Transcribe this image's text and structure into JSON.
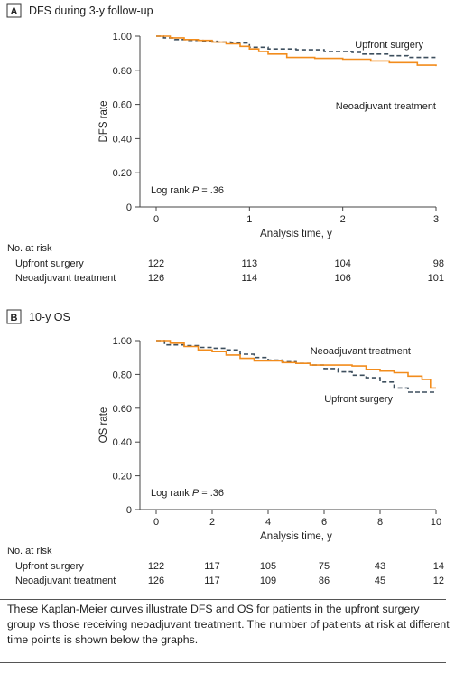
{
  "chart_data": [
    {
      "type": "line",
      "panel_letter": "A",
      "title": "DFS during 3-y follow-up",
      "xlabel": "Analysis time, y",
      "ylabel": "DFS rate",
      "xlim": [
        0,
        3
      ],
      "ylim": [
        0,
        1
      ],
      "x_ticks": [
        0,
        1,
        2,
        3
      ],
      "x_tick_labels": [
        "0",
        "1",
        "2",
        "3"
      ],
      "y_ticks": [
        0,
        0.2,
        0.4,
        0.6,
        0.8,
        1.0
      ],
      "y_tick_labels": [
        "0",
        "0.20",
        "0.40",
        "0.60",
        "0.80",
        "1.00"
      ],
      "annotation": {
        "prefix": "Log rank ",
        "p": "P",
        "suffix": " = .36"
      },
      "series": [
        {
          "name": "Upfront surgery",
          "color": "#3d4f5e",
          "style": "dashed",
          "x": [
            0,
            0.08,
            0.2,
            0.35,
            0.5,
            0.65,
            0.8,
            1.0,
            1.2,
            1.5,
            1.8,
            2.1,
            2.2,
            2.5,
            2.7,
            3.0
          ],
          "y": [
            1.0,
            0.99,
            0.98,
            0.975,
            0.97,
            0.965,
            0.96,
            0.935,
            0.925,
            0.92,
            0.91,
            0.905,
            0.895,
            0.885,
            0.875,
            0.87
          ]
        },
        {
          "name": "Neoadjuvant treatment",
          "color": "#f28c1c",
          "style": "solid",
          "x": [
            0,
            0.15,
            0.3,
            0.45,
            0.6,
            0.75,
            0.9,
            1.0,
            1.1,
            1.2,
            1.4,
            1.7,
            2.0,
            2.3,
            2.5,
            2.8,
            3.0
          ],
          "y": [
            1.0,
            0.99,
            0.98,
            0.975,
            0.965,
            0.955,
            0.94,
            0.925,
            0.91,
            0.895,
            0.875,
            0.87,
            0.865,
            0.855,
            0.845,
            0.83,
            0.825
          ]
        }
      ],
      "risk_table": {
        "header": "No. at risk",
        "rows": [
          {
            "label": "Upfront surgery",
            "values": [
              "122",
              "113",
              "104",
              "98"
            ]
          },
          {
            "label": "Neoadjuvant treatment",
            "values": [
              "126",
              "114",
              "106",
              "101"
            ]
          }
        ]
      }
    },
    {
      "type": "line",
      "panel_letter": "B",
      "title": "10-y OS",
      "xlabel": "Analysis time, y",
      "ylabel": "OS rate",
      "xlim": [
        0,
        10
      ],
      "ylim": [
        0,
        1
      ],
      "x_ticks": [
        0,
        2,
        4,
        6,
        8,
        10
      ],
      "x_tick_labels": [
        "0",
        "2",
        "4",
        "6",
        "8",
        "10"
      ],
      "y_ticks": [
        0,
        0.2,
        0.4,
        0.6,
        0.8,
        1.0
      ],
      "y_tick_labels": [
        "0",
        "0.20",
        "0.40",
        "0.60",
        "0.80",
        "1.00"
      ],
      "annotation": {
        "prefix": "Log rank ",
        "p": "P",
        "suffix": " = .36"
      },
      "series": [
        {
          "name": "Upfront surgery",
          "color": "#3d4f5e",
          "style": "dashed",
          "x": [
            0,
            0.3,
            1.0,
            1.5,
            2.0,
            2.5,
            3.0,
            3.5,
            4.0,
            4.5,
            5.0,
            5.5,
            6.0,
            6.5,
            7.0,
            7.5,
            8.0,
            8.5,
            9.0,
            10.0
          ],
          "y": [
            1.0,
            0.975,
            0.97,
            0.96,
            0.955,
            0.945,
            0.92,
            0.9,
            0.885,
            0.875,
            0.865,
            0.855,
            0.835,
            0.815,
            0.795,
            0.78,
            0.755,
            0.72,
            0.695,
            0.695
          ]
        },
        {
          "name": "Neoadjuvant treatment",
          "color": "#f28c1c",
          "style": "solid",
          "x": [
            0,
            0.5,
            1.0,
            1.5,
            2.0,
            2.5,
            3.0,
            3.5,
            4.0,
            4.5,
            5.0,
            5.5,
            6.0,
            7.0,
            7.5,
            8.0,
            8.5,
            9.0,
            9.5,
            9.8,
            10.0
          ],
          "y": [
            1.0,
            0.985,
            0.965,
            0.945,
            0.935,
            0.915,
            0.895,
            0.88,
            0.88,
            0.87,
            0.865,
            0.855,
            0.855,
            0.85,
            0.83,
            0.82,
            0.81,
            0.79,
            0.77,
            0.72,
            0.72
          ]
        }
      ],
      "risk_table": {
        "header": "No. at risk",
        "rows": [
          {
            "label": "Upfront surgery",
            "values": [
              "122",
              "117",
              "105",
              "75",
              "43",
              "14"
            ]
          },
          {
            "label": "Neoadjuvant treatment",
            "values": [
              "126",
              "117",
              "109",
              "86",
              "45",
              "12"
            ]
          }
        ]
      }
    }
  ],
  "caption": "These Kaplan-Meier curves illustrate DFS and OS for patients in the upfront surgery group vs those receiving neoadjuvant treatment. The number of patients at risk at different time points is shown below the graphs."
}
